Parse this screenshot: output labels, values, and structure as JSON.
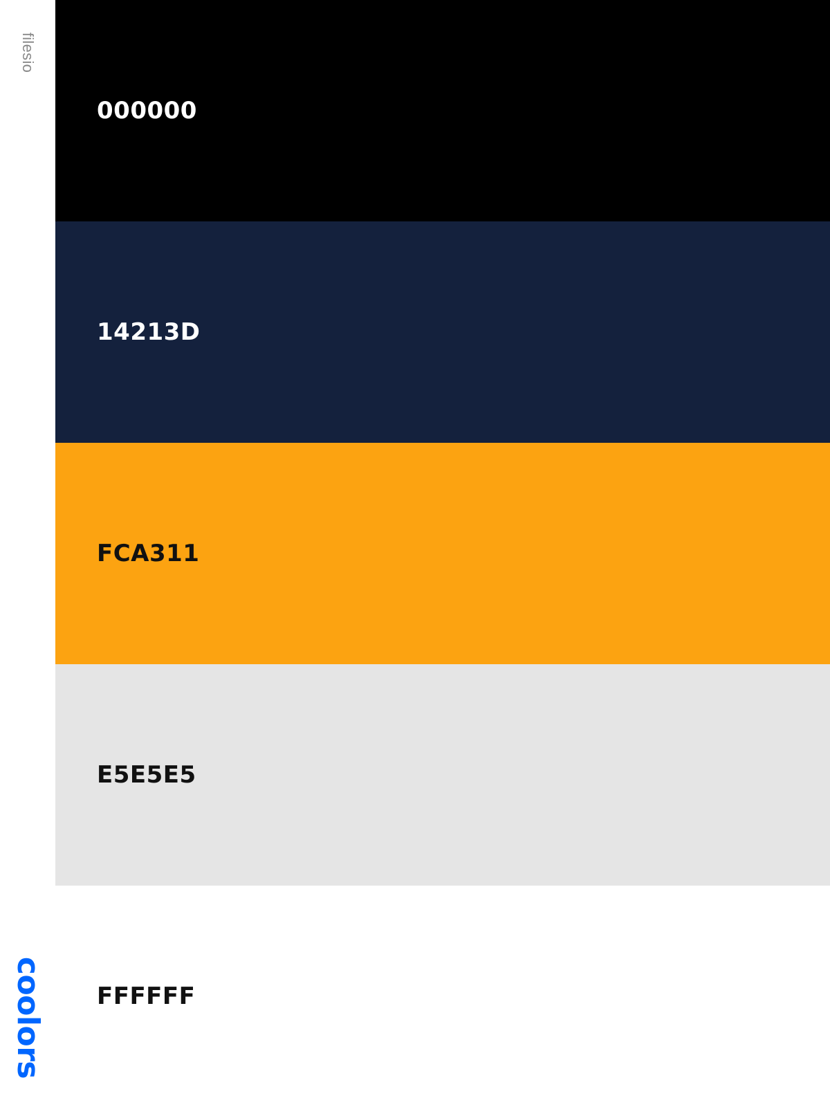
{
  "sidebar": {
    "owner_name": "filesio",
    "brand": {
      "text": "coolors",
      "color": "#0066FF"
    }
  },
  "palette": {
    "swatches": [
      {
        "code": "000000",
        "hex": "#000000",
        "text_color": "#FFFFFF"
      },
      {
        "code": "14213D",
        "hex": "#14213D",
        "text_color": "#FFFFFF"
      },
      {
        "code": "FCA311",
        "hex": "#FCA311",
        "text_color": "#111111"
      },
      {
        "code": "E5E5E5",
        "hex": "#E5E5E5",
        "text_color": "#111111"
      },
      {
        "code": "FFFFFF",
        "hex": "#FFFFFF",
        "text_color": "#111111"
      }
    ]
  }
}
